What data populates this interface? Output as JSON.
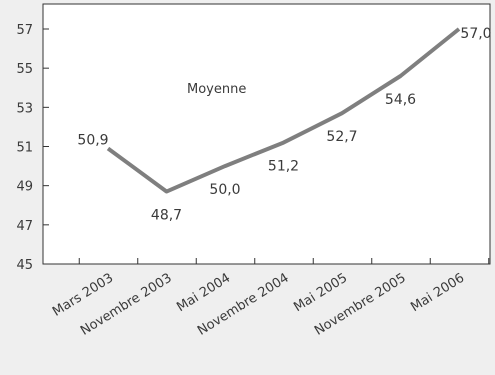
{
  "chart_data": {
    "type": "line",
    "categories": [
      "Mars 2003",
      "Novembre 2003",
      "Mai 2004",
      "Novembre 2004",
      "Mai 2005",
      "Novembre 2005",
      "Mai 2006"
    ],
    "series": [
      {
        "name": "Moyenne",
        "values": [
          50.9,
          48.7,
          50.0,
          51.2,
          52.7,
          54.6,
          57.0
        ],
        "labels": [
          "50,9",
          "48,7",
          "50,0",
          "51,2",
          "52,7",
          "54,6",
          "57,0"
        ],
        "color": "#7f7f7f"
      }
    ],
    "title": "",
    "xlabel": "",
    "ylabel": "",
    "ylim": [
      45,
      58
    ],
    "yticks": [
      45,
      47,
      49,
      51,
      53,
      55,
      57
    ],
    "grid": false,
    "legend": "none",
    "background": "#ffffff",
    "page_background": "#efefef",
    "axis_color": "#333333"
  }
}
